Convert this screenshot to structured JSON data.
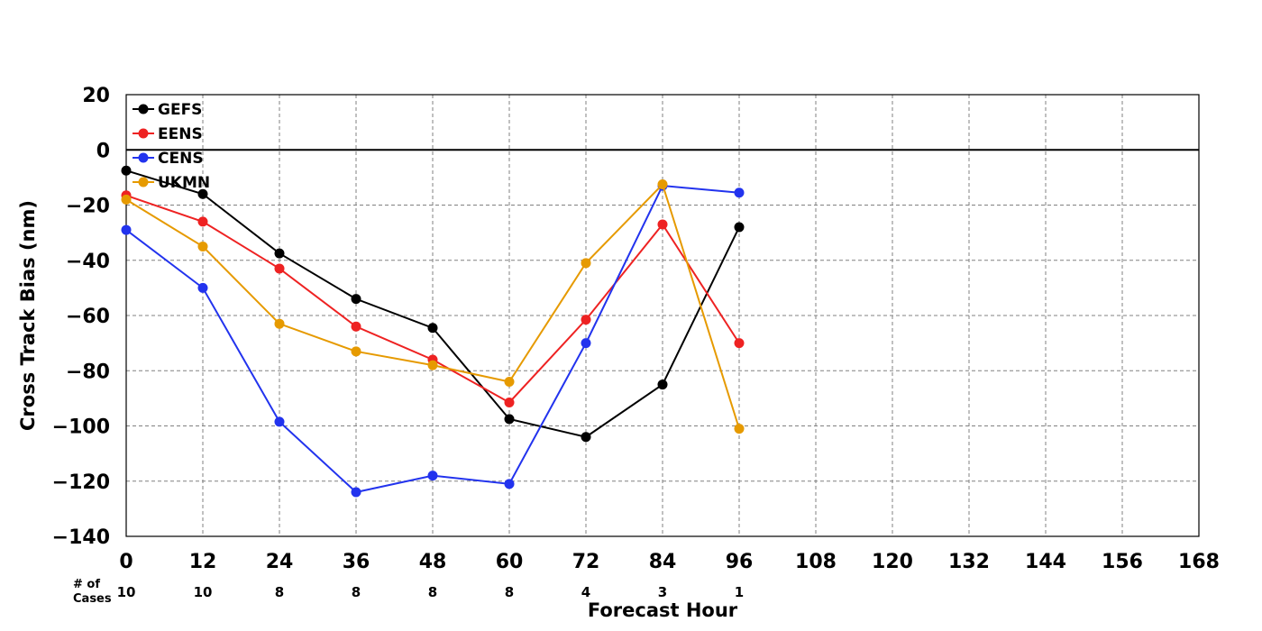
{
  "chart_data": {
    "type": "line",
    "xlabel": "Forecast Hour",
    "ylabel": "Cross Track Bias (nm)",
    "xlim": [
      0,
      168
    ],
    "ylim": [
      -140,
      20
    ],
    "x_ticks": [
      0,
      12,
      24,
      36,
      48,
      60,
      72,
      84,
      96,
      108,
      120,
      132,
      144,
      156,
      168
    ],
    "y_ticks": [
      20,
      0,
      -20,
      -40,
      -60,
      -80,
      -100,
      -120,
      -140
    ],
    "grid": true,
    "zero_line": true,
    "legend_position": "top-left",
    "x": [
      0,
      12,
      24,
      36,
      48,
      60,
      72,
      84,
      96
    ],
    "series": [
      {
        "name": "GEFS",
        "color": "#000000",
        "values": [
          -7.5,
          -16,
          -37.5,
          -54,
          -64.5,
          -97.5,
          -104,
          -85,
          -28
        ]
      },
      {
        "name": "EENS",
        "color": "#ee2222",
        "values": [
          -16.5,
          -26,
          -43,
          -64,
          -76,
          -91.5,
          -61.5,
          -27,
          -70
        ]
      },
      {
        "name": "CENS",
        "color": "#2233ee",
        "values": [
          -29,
          -50,
          -98.5,
          -124,
          -118,
          -121,
          -70,
          -13,
          -15.5
        ]
      },
      {
        "name": "UKMN",
        "color": "#e69a00",
        "values": [
          -18,
          -35,
          -63,
          -73,
          -78,
          -84,
          -41,
          -12.5,
          -101
        ]
      }
    ],
    "cases": {
      "label_line1": "# of",
      "label_line2": "Cases",
      "x": [
        0,
        12,
        24,
        36,
        48,
        60,
        72,
        84,
        96
      ],
      "values": [
        "10",
        "10",
        "8",
        "8",
        "8",
        "8",
        "4",
        "3",
        "1"
      ]
    }
  }
}
